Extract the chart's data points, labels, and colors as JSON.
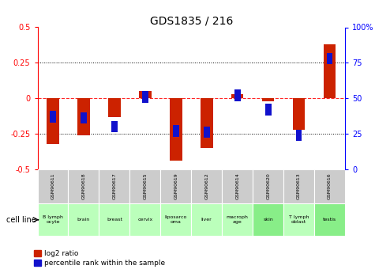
{
  "title": "GDS1835 / 216",
  "gsm_labels": [
    "GSM90611",
    "GSM90618",
    "GSM90617",
    "GSM90615",
    "GSM90619",
    "GSM90612",
    "GSM90614",
    "GSM90620",
    "GSM90613",
    "GSM90616"
  ],
  "cell_lines": [
    "B lymph\nocyte",
    "brain",
    "breast",
    "cervix",
    "liposarco\noma",
    "liver",
    "macroph\nage",
    "skin",
    "T lymph\noblast",
    "testis"
  ],
  "log2_ratio": [
    -0.32,
    -0.26,
    -0.13,
    0.05,
    -0.44,
    -0.35,
    0.03,
    -0.02,
    -0.22,
    0.38
  ],
  "percentile_rank": [
    37,
    36,
    30,
    51,
    27,
    26,
    52,
    42,
    24,
    78
  ],
  "bar_color": "#cc2200",
  "pct_color": "#1111cc",
  "ylim_left": [
    -0.5,
    0.5
  ],
  "ylim_right": [
    0,
    100
  ],
  "yticks_left": [
    -0.5,
    -0.25,
    0,
    0.25,
    0.5
  ],
  "yticks_right": [
    0,
    25,
    50,
    75,
    100
  ],
  "cell_line_bg": "#bbffbb",
  "cell_line_bg_alt": "#88ee88",
  "cell_line_alt_indices": [
    7,
    9
  ],
  "gsm_bg": "#cccccc",
  "gsm_bg_alt": "#cccccc",
  "legend_red": "log2 ratio",
  "legend_blue": "percentile rank within the sample",
  "cell_line_label": "cell line",
  "bar_width": 0.4,
  "pct_square_size": 0.08
}
